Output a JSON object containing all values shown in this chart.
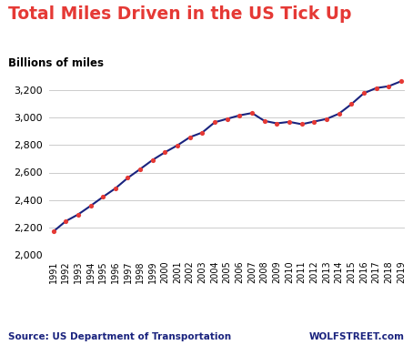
{
  "title": "Total Miles Driven in the US Tick Up",
  "subtitle": "Billions of miles",
  "source_left": "Source: US Department of Transportation",
  "source_right": "WOLFSTREET.com",
  "years": [
    1991,
    1992,
    1993,
    1994,
    1995,
    1996,
    1997,
    1998,
    1999,
    2000,
    2001,
    2002,
    2003,
    2004,
    2005,
    2006,
    2007,
    2008,
    2009,
    2010,
    2011,
    2012,
    2013,
    2014,
    2015,
    2016,
    2017,
    2018,
    2019
  ],
  "values": [
    2172,
    2247,
    2296,
    2358,
    2423,
    2485,
    2561,
    2625,
    2691,
    2747,
    2797,
    2856,
    2890,
    2964,
    2989,
    3014,
    3031,
    2974,
    2956,
    2967,
    2950,
    2969,
    2988,
    3026,
    3095,
    3174,
    3212,
    3225,
    3261
  ],
  "ylim": [
    2000,
    3300
  ],
  "yticks": [
    2000,
    2200,
    2400,
    2600,
    2800,
    3000,
    3200
  ],
  "line_color": "#1a237e",
  "marker_color": "#e53935",
  "title_color": "#e53935",
  "subtitle_color": "#000000",
  "bg_color": "#ffffff",
  "grid_color": "#cccccc",
  "source_color": "#1a237e",
  "title_fontsize": 13.5,
  "subtitle_fontsize": 8.5,
  "tick_fontsize": 7,
  "ytick_fontsize": 8,
  "source_fontsize": 7.5
}
